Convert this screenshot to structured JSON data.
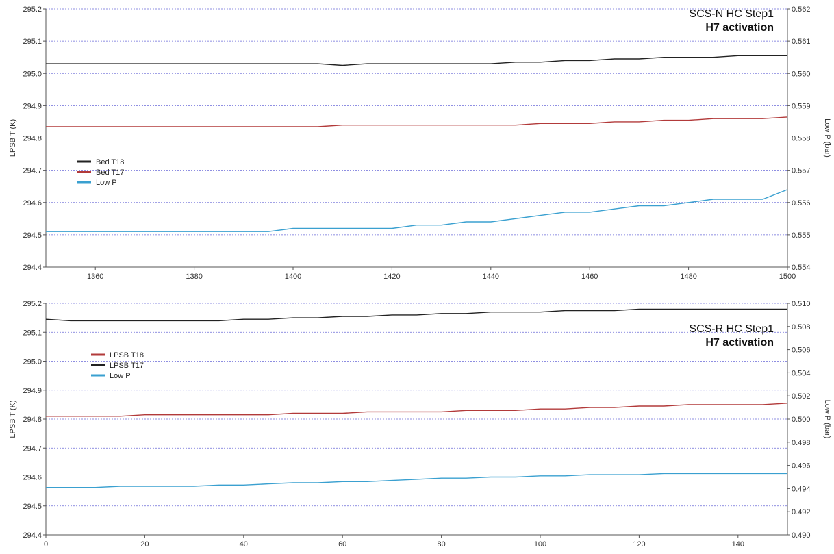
{
  "chart_data": [
    {
      "type": "line",
      "annotation_line1": "SCS-N HC Step1",
      "annotation_line2": "H7 activation",
      "ylabel_left": "LPSB T (K)",
      "ylabel_right": "Low P (bar)",
      "xlim": [
        1350,
        1500
      ],
      "ylim_left": [
        294.4,
        295.2
      ],
      "ylim_right": [
        0.554,
        0.562
      ],
      "x_ticks": [
        "1360",
        "1380",
        "1400",
        "1420",
        "1440",
        "1460",
        "1480",
        "1500"
      ],
      "y_left_ticks": [
        "294.4",
        "294.5",
        "294.6",
        "294.7",
        "294.8",
        "294.9",
        "295.0",
        "295.1",
        "295.2"
      ],
      "y_right_ticks": [
        "0.554",
        "0.555",
        "0.556",
        "0.557",
        "0.558",
        "0.559",
        "0.560",
        "0.561",
        "0.562"
      ],
      "grid": "horizontal dotted",
      "legend_position": "left-middle",
      "series": [
        {
          "name": "Bed T18",
          "color": "#222222",
          "axis": "left",
          "x": [
            1350,
            1355,
            1360,
            1365,
            1370,
            1375,
            1380,
            1385,
            1390,
            1395,
            1400,
            1405,
            1410,
            1415,
            1420,
            1425,
            1430,
            1435,
            1440,
            1445,
            1450,
            1455,
            1460,
            1465,
            1470,
            1475,
            1480,
            1485,
            1490,
            1495,
            1500
          ],
          "values": [
            295.03,
            295.03,
            295.03,
            295.03,
            295.03,
            295.03,
            295.03,
            295.03,
            295.03,
            295.03,
            295.03,
            295.03,
            295.025,
            295.03,
            295.03,
            295.03,
            295.03,
            295.03,
            295.03,
            295.035,
            295.035,
            295.04,
            295.04,
            295.045,
            295.045,
            295.05,
            295.05,
            295.05,
            295.055,
            295.055,
            295.055
          ]
        },
        {
          "name": "Bed T17",
          "color": "#b23a3a",
          "axis": "left",
          "x": [
            1350,
            1355,
            1360,
            1365,
            1370,
            1375,
            1380,
            1385,
            1390,
            1395,
            1400,
            1405,
            1410,
            1415,
            1420,
            1425,
            1430,
            1435,
            1440,
            1445,
            1450,
            1455,
            1460,
            1465,
            1470,
            1475,
            1480,
            1485,
            1490,
            1495,
            1500
          ],
          "values": [
            294.835,
            294.835,
            294.835,
            294.835,
            294.835,
            294.835,
            294.835,
            294.835,
            294.835,
            294.835,
            294.835,
            294.835,
            294.84,
            294.84,
            294.84,
            294.84,
            294.84,
            294.84,
            294.84,
            294.84,
            294.845,
            294.845,
            294.845,
            294.85,
            294.85,
            294.855,
            294.855,
            294.86,
            294.86,
            294.86,
            294.865
          ]
        },
        {
          "name": "Low P",
          "color": "#3aa0d0",
          "axis": "right",
          "x": [
            1350,
            1355,
            1360,
            1365,
            1370,
            1375,
            1380,
            1385,
            1390,
            1395,
            1400,
            1405,
            1410,
            1415,
            1420,
            1425,
            1430,
            1435,
            1440,
            1445,
            1450,
            1455,
            1460,
            1465,
            1470,
            1475,
            1480,
            1485,
            1490,
            1495,
            1500
          ],
          "values": [
            0.5551,
            0.5551,
            0.5551,
            0.5551,
            0.5551,
            0.5551,
            0.5551,
            0.5551,
            0.5551,
            0.5551,
            0.5552,
            0.5552,
            0.5552,
            0.5552,
            0.5552,
            0.5553,
            0.5553,
            0.5554,
            0.5554,
            0.5555,
            0.5556,
            0.5557,
            0.5557,
            0.5558,
            0.5559,
            0.5559,
            0.556,
            0.5561,
            0.5561,
            0.5561,
            0.5564
          ]
        }
      ]
    },
    {
      "type": "line",
      "annotation_line1": "SCS-R HC Step1",
      "annotation_line2": "H7 activation",
      "ylabel_left": "LPSB T (K)",
      "ylabel_right": "Low P (bar)",
      "xlim": [
        0,
        150
      ],
      "ylim_left": [
        294.4,
        295.2
      ],
      "ylim_right": [
        0.49,
        0.51
      ],
      "x_ticks": [
        "0",
        "20",
        "40",
        "60",
        "80",
        "100",
        "120",
        "140"
      ],
      "y_left_ticks": [
        "294.4",
        "294.5",
        "294.6",
        "294.7",
        "294.8",
        "294.9",
        "295.0",
        "295.1",
        "295.2"
      ],
      "y_right_ticks": [
        "0.490",
        "0.492",
        "0.494",
        "0.496",
        "0.498",
        "0.500",
        "0.502",
        "0.504",
        "0.506",
        "0.508",
        "0.510"
      ],
      "grid": "horizontal dotted",
      "legend_position": "left-upper",
      "series": [
        {
          "name": "LPSB T18",
          "color": "#b23a3a",
          "axis": "left",
          "x": [
            0,
            5,
            10,
            15,
            20,
            25,
            30,
            35,
            40,
            45,
            50,
            55,
            60,
            65,
            70,
            75,
            80,
            85,
            90,
            95,
            100,
            105,
            110,
            115,
            120,
            125,
            130,
            135,
            140,
            145,
            150
          ],
          "values": [
            294.81,
            294.81,
            294.81,
            294.81,
            294.815,
            294.815,
            294.815,
            294.815,
            294.815,
            294.815,
            294.82,
            294.82,
            294.82,
            294.825,
            294.825,
            294.825,
            294.825,
            294.83,
            294.83,
            294.83,
            294.835,
            294.835,
            294.84,
            294.84,
            294.845,
            294.845,
            294.85,
            294.85,
            294.85,
            294.85,
            294.855
          ]
        },
        {
          "name": "LPSB T17",
          "color": "#222222",
          "axis": "left",
          "x": [
            0,
            5,
            10,
            15,
            20,
            25,
            30,
            35,
            40,
            45,
            50,
            55,
            60,
            65,
            70,
            75,
            80,
            85,
            90,
            95,
            100,
            105,
            110,
            115,
            120,
            125,
            130,
            135,
            140,
            145,
            150
          ],
          "values": [
            295.145,
            295.14,
            295.14,
            295.14,
            295.14,
            295.14,
            295.14,
            295.14,
            295.145,
            295.145,
            295.15,
            295.15,
            295.155,
            295.155,
            295.16,
            295.16,
            295.165,
            295.165,
            295.17,
            295.17,
            295.17,
            295.175,
            295.175,
            295.175,
            295.18,
            295.18,
            295.18,
            295.18,
            295.18,
            295.18,
            295.18
          ]
        },
        {
          "name": "Low P",
          "color": "#3aa0d0",
          "axis": "right",
          "x": [
            0,
            5,
            10,
            15,
            20,
            25,
            30,
            35,
            40,
            45,
            50,
            55,
            60,
            65,
            70,
            75,
            80,
            85,
            90,
            95,
            100,
            105,
            110,
            115,
            120,
            125,
            130,
            135,
            140,
            145,
            150
          ],
          "values": [
            0.4941,
            0.4941,
            0.4941,
            0.4942,
            0.4942,
            0.4942,
            0.4942,
            0.4943,
            0.4943,
            0.4944,
            0.4945,
            0.4945,
            0.4946,
            0.4946,
            0.4947,
            0.4948,
            0.4949,
            0.4949,
            0.495,
            0.495,
            0.4951,
            0.4951,
            0.4952,
            0.4952,
            0.4952,
            0.4953,
            0.4953,
            0.4953,
            0.4953,
            0.4953,
            0.4953
          ]
        }
      ]
    }
  ]
}
